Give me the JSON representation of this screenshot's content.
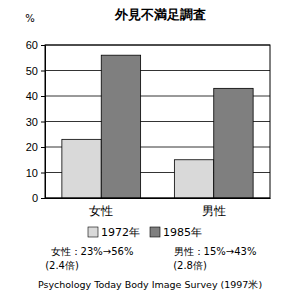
{
  "chart_data": {
    "type": "bar",
    "title": "外見不満足調査",
    "y_label": "%",
    "categories": [
      "女性",
      "男性"
    ],
    "series": [
      {
        "name": "1972年",
        "color": "#d9d9d9",
        "values": [
          23,
          15
        ]
      },
      {
        "name": "1985年",
        "color": "#7f7f7f",
        "values": [
          56,
          43
        ]
      }
    ],
    "ylim": [
      0,
      60
    ],
    "yticks": [
      0,
      10,
      20,
      30,
      40,
      50,
      60
    ],
    "grid": true,
    "legend": "bottom",
    "annotations": [
      "女性：23%→56%",
      "(2.4倍)",
      "男性：15%→43%",
      "(2.8倍)",
      "Psychology Today Body Image Survey (1997米)"
    ]
  }
}
